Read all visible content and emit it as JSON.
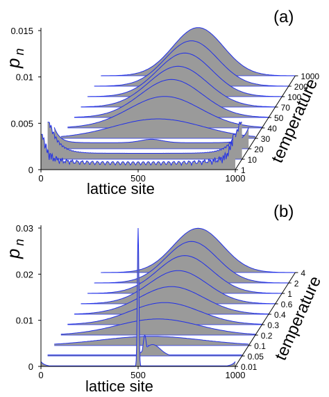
{
  "chart_data": [
    {
      "type": "area",
      "panel_label": "(a)",
      "xlabel": "lattice site",
      "ylabel": "p",
      "ylabel_sub": "n",
      "depth_label": "temperature",
      "x_ticks": [
        "0",
        "500",
        "1000"
      ],
      "y_ticks": [
        "0",
        "0.005",
        "0.01",
        "0.015"
      ],
      "xlim": [
        0,
        1000
      ],
      "ylim": [
        0,
        0.015
      ],
      "colors": {
        "fill": "#9a9a9a",
        "line": "#1f2ee8"
      },
      "series": [
        {
          "name": "1",
          "shape": "edge_oscillating",
          "center": 500,
          "width": 0,
          "peak": 0.0038
        },
        {
          "name": "10",
          "shape": "edge_u",
          "center": 500,
          "width": 0,
          "peak": 0.004
        },
        {
          "name": "20",
          "shape": "edge_flat",
          "center": 500,
          "width": 0,
          "peak": 0.003
        },
        {
          "name": "30",
          "shape": "gaussian",
          "center": 500,
          "width": 230,
          "peak": 0.0021
        },
        {
          "name": "40",
          "shape": "gaussian",
          "center": 500,
          "width": 185,
          "peak": 0.0034
        },
        {
          "name": "50",
          "shape": "gaussian",
          "center": 500,
          "width": 160,
          "peak": 0.0041
        },
        {
          "name": "70",
          "shape": "gaussian",
          "center": 500,
          "width": 150,
          "peak": 0.0044
        },
        {
          "name": "100",
          "shape": "gaussian",
          "center": 500,
          "width": 140,
          "peak": 0.0047
        },
        {
          "name": "200",
          "shape": "gaussian",
          "center": 500,
          "width": 135,
          "peak": 0.0049
        },
        {
          "name": "1000",
          "shape": "gaussian",
          "center": 500,
          "width": 130,
          "peak": 0.0052
        }
      ]
    },
    {
      "type": "area",
      "panel_label": "(b)",
      "xlabel": "lattice site",
      "ylabel": "p",
      "ylabel_sub": "n",
      "depth_label": "temperature",
      "x_ticks": [
        "0",
        "500",
        "1000"
      ],
      "y_ticks": [
        "0",
        "0.01",
        "0.02",
        "0.03"
      ],
      "xlim": [
        0,
        1000
      ],
      "ylim": [
        0,
        0.03
      ],
      "colors": {
        "fill": "#9a9a9a",
        "line": "#1f2ee8"
      },
      "series": [
        {
          "name": "0.01",
          "shape": "spike_edges",
          "center": 500,
          "width": 0,
          "peak": 0.03
        },
        {
          "name": "0.05",
          "shape": "spike_broad",
          "center": 500,
          "width": 0,
          "peak": 0.0045
        },
        {
          "name": "0.1",
          "shape": "gaussian",
          "center": 500,
          "width": 260,
          "peak": 0.002
        },
        {
          "name": "0.2",
          "shape": "gaussian",
          "center": 500,
          "width": 210,
          "peak": 0.0035
        },
        {
          "name": "0.3",
          "shape": "gaussian",
          "center": 500,
          "width": 180,
          "peak": 0.0048
        },
        {
          "name": "0.4",
          "shape": "gaussian",
          "center": 500,
          "width": 165,
          "peak": 0.006
        },
        {
          "name": "0.6",
          "shape": "gaussian",
          "center": 500,
          "width": 150,
          "peak": 0.0072
        },
        {
          "name": "1",
          "shape": "gaussian",
          "center": 500,
          "width": 140,
          "peak": 0.0082
        },
        {
          "name": "2",
          "shape": "gaussian",
          "center": 500,
          "width": 132,
          "peak": 0.009
        },
        {
          "name": "4",
          "shape": "gaussian",
          "center": 500,
          "width": 128,
          "peak": 0.0096
        }
      ]
    }
  ]
}
